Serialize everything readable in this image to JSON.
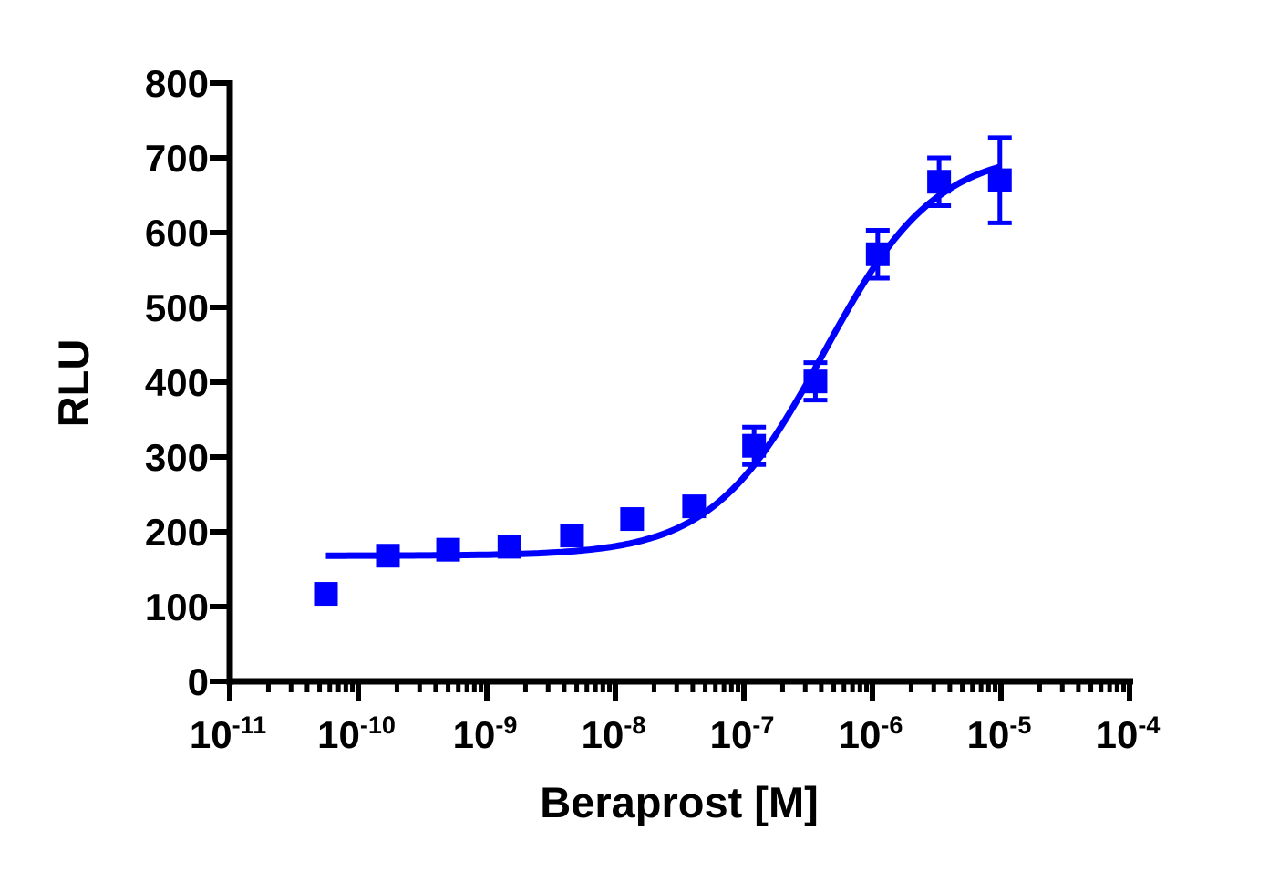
{
  "chart_data": {
    "type": "scatter",
    "title": "",
    "xlabel": "Beraprost [M]",
    "ylabel": "RLU",
    "x_scale": "log",
    "xlim": [
      1e-11,
      0.0001
    ],
    "ylim": [
      0,
      800
    ],
    "x_ticks": [
      {
        "base": "10",
        "exp": "-11"
      },
      {
        "base": "10",
        "exp": "-10"
      },
      {
        "base": "10",
        "exp": "-9"
      },
      {
        "base": "10",
        "exp": "-8"
      },
      {
        "base": "10",
        "exp": "-7"
      },
      {
        "base": "10",
        "exp": "-6"
      },
      {
        "base": "10",
        "exp": "-5"
      },
      {
        "base": "10",
        "exp": "-4"
      }
    ],
    "y_ticks": [
      "0",
      "100",
      "200",
      "300",
      "400",
      "500",
      "600",
      "700",
      "800"
    ],
    "grid": false,
    "color": "#0000ff",
    "series": [
      {
        "marker": "square",
        "x": [
          5.6e-11,
          1.7e-10,
          5e-10,
          1.5e-09,
          4.6e-09,
          1.35e-08,
          4.1e-08,
          1.2e-07,
          3.6e-07,
          1.1e-06,
          3.3e-06,
          9.8e-06
        ],
        "y": [
          117,
          168,
          176,
          180,
          195,
          217,
          234,
          315,
          401,
          571,
          668,
          670
        ],
        "error": [
          0,
          0,
          0,
          0,
          0,
          0,
          0,
          25,
          25,
          32,
          32,
          57
        ]
      }
    ],
    "fit_curve": {
      "model": "sigmoidal dose-response",
      "bottom": 168,
      "top": 710,
      "log_ec50": -6.38,
      "hill_slope": 1.0,
      "x_range": [
        5.6e-11,
        1e-05
      ]
    }
  }
}
